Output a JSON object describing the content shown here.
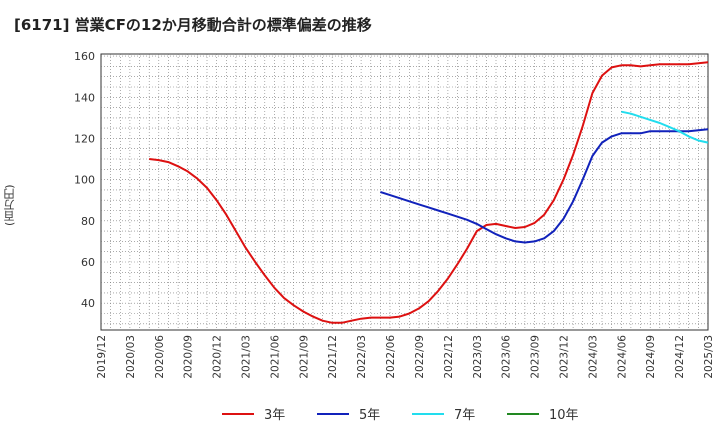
{
  "title": "[6171]  営業CFの12か月移動合計の標準偏差の推移",
  "y_unit": "(百万円)",
  "chart_data": {
    "type": "line",
    "ylim": [
      27,
      161
    ],
    "yticks": [
      40,
      60,
      80,
      100,
      120,
      140,
      160
    ],
    "x_tick_labels": [
      "2019/12",
      "2020/03",
      "2020/06",
      "2020/09",
      "2020/12",
      "2021/03",
      "2021/06",
      "2021/09",
      "2021/12",
      "2022/03",
      "2022/06",
      "2022/09",
      "2022/12",
      "2023/03",
      "2023/06",
      "2023/09",
      "2023/12",
      "2024/03",
      "2024/06",
      "2024/09",
      "2024/12",
      "2025/03"
    ],
    "grid": true,
    "legend_position": "bottom",
    "series": [
      {
        "name": "3年",
        "color": "#dd1111",
        "points": [
          [
            "2020/05",
            110
          ],
          [
            "2020/06",
            109.5
          ],
          [
            "2020/07",
            108.5
          ],
          [
            "2020/08",
            106.5
          ],
          [
            "2020/09",
            104
          ],
          [
            "2020/10",
            100.5
          ],
          [
            "2020/11",
            96
          ],
          [
            "2020/12",
            90
          ],
          [
            "2021/01",
            83
          ],
          [
            "2021/02",
            75
          ],
          [
            "2021/03",
            67
          ],
          [
            "2021/04",
            60
          ],
          [
            "2021/05",
            53.5
          ],
          [
            "2021/06",
            47.5
          ],
          [
            "2021/07",
            42.5
          ],
          [
            "2021/08",
            39
          ],
          [
            "2021/09",
            36
          ],
          [
            "2021/10",
            33.5
          ],
          [
            "2021/11",
            31.5
          ],
          [
            "2021/12",
            30.5
          ],
          [
            "2022/01",
            30.5
          ],
          [
            "2022/02",
            31.5
          ],
          [
            "2022/03",
            32.5
          ],
          [
            "2022/04",
            33
          ],
          [
            "2022/05",
            33
          ],
          [
            "2022/06",
            33
          ],
          [
            "2022/07",
            33.5
          ],
          [
            "2022/08",
            35
          ],
          [
            "2022/09",
            37.5
          ],
          [
            "2022/10",
            41
          ],
          [
            "2022/11",
            46
          ],
          [
            "2022/12",
            52
          ],
          [
            "2023/01",
            59
          ],
          [
            "2023/02",
            66.5
          ],
          [
            "2023/03",
            75
          ],
          [
            "2023/04",
            78
          ],
          [
            "2023/05",
            78.5
          ],
          [
            "2023/06",
            77.5
          ],
          [
            "2023/07",
            76.5
          ],
          [
            "2023/08",
            77
          ],
          [
            "2023/09",
            79
          ],
          [
            "2023/10",
            83
          ],
          [
            "2023/11",
            90
          ],
          [
            "2023/12",
            100
          ],
          [
            "2024/01",
            112
          ],
          [
            "2024/02",
            126
          ],
          [
            "2024/03",
            142
          ],
          [
            "2024/04",
            150.5
          ],
          [
            "2024/05",
            154.5
          ],
          [
            "2024/06",
            155.5
          ],
          [
            "2024/07",
            155.5
          ],
          [
            "2024/08",
            155
          ],
          [
            "2024/09",
            155.5
          ],
          [
            "2024/10",
            156
          ],
          [
            "2024/11",
            156
          ],
          [
            "2024/12",
            156
          ],
          [
            "2025/01",
            156
          ],
          [
            "2025/02",
            156.5
          ],
          [
            "2025/03",
            157
          ]
        ]
      },
      {
        "name": "5年",
        "color": "#1122bb",
        "points": [
          [
            "2022/05",
            94
          ],
          [
            "2022/06",
            92.5
          ],
          [
            "2022/07",
            91
          ],
          [
            "2022/08",
            89.5
          ],
          [
            "2022/09",
            88
          ],
          [
            "2022/10",
            86.5
          ],
          [
            "2022/11",
            85
          ],
          [
            "2022/12",
            83.5
          ],
          [
            "2023/01",
            82
          ],
          [
            "2023/02",
            80.5
          ],
          [
            "2023/03",
            78.5
          ],
          [
            "2023/04",
            76
          ],
          [
            "2023/05",
            73.5
          ],
          [
            "2023/06",
            71.5
          ],
          [
            "2023/07",
            70
          ],
          [
            "2023/08",
            69.5
          ],
          [
            "2023/09",
            70
          ],
          [
            "2023/10",
            71.5
          ],
          [
            "2023/11",
            75
          ],
          [
            "2023/12",
            81
          ],
          [
            "2024/01",
            89.5
          ],
          [
            "2024/02",
            100
          ],
          [
            "2024/03",
            111.5
          ],
          [
            "2024/04",
            118
          ],
          [
            "2024/05",
            121
          ],
          [
            "2024/06",
            122.5
          ],
          [
            "2024/07",
            122.5
          ],
          [
            "2024/08",
            122.5
          ],
          [
            "2024/09",
            123.5
          ],
          [
            "2024/10",
            123.5
          ],
          [
            "2024/11",
            123.5
          ],
          [
            "2024/12",
            123.5
          ],
          [
            "2025/01",
            123.5
          ],
          [
            "2025/02",
            124
          ],
          [
            "2025/03",
            124.5
          ]
        ]
      },
      {
        "name": "7年",
        "color": "#22ddee",
        "points": [
          [
            "2024/06",
            133
          ],
          [
            "2024/07",
            132
          ],
          [
            "2024/08",
            130.5
          ],
          [
            "2024/09",
            129
          ],
          [
            "2024/10",
            127.5
          ],
          [
            "2024/11",
            125.5
          ],
          [
            "2024/12",
            123.5
          ],
          [
            "2025/01",
            121
          ],
          [
            "2025/02",
            119
          ],
          [
            "2025/03",
            118
          ]
        ]
      },
      {
        "name": "10年",
        "color": "#228822",
        "points": []
      }
    ]
  }
}
